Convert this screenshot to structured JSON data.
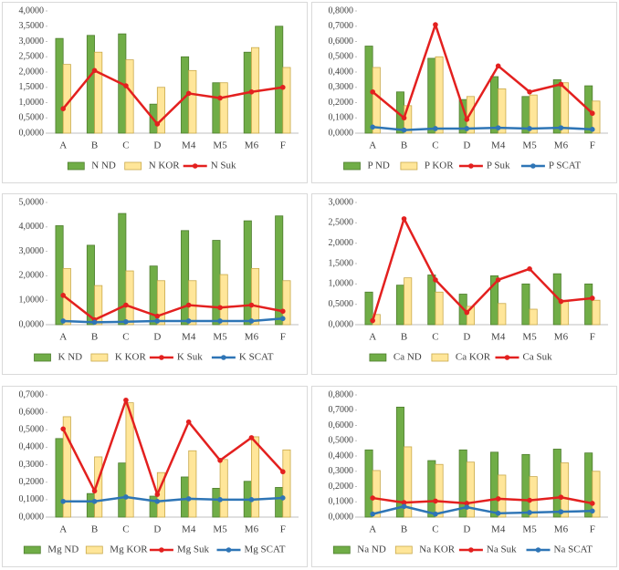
{
  "chart_data": [
    {
      "type": "bar_line",
      "categories": [
        "A",
        "B",
        "C",
        "D",
        "M4",
        "M5",
        "M6",
        "F"
      ],
      "ylim": [
        0,
        4
      ],
      "yticks": [
        {
          "value": 0,
          "label": "0,0000"
        },
        {
          "value": 0.5,
          "label": "0,5000"
        },
        {
          "value": 1,
          "label": "1,0000"
        },
        {
          "value": 1.5,
          "label": "1,5000"
        },
        {
          "value": 2,
          "label": "2,0000"
        },
        {
          "value": 2.5,
          "label": "2,5000"
        },
        {
          "value": 3,
          "label": "3,0000"
        },
        {
          "value": 3.5,
          "label": "3,5000"
        },
        {
          "value": 4,
          "label": "4,0000"
        }
      ],
      "series": [
        {
          "name": "N ND",
          "mark": "bar",
          "color": "#70ad47",
          "values": [
            3.1,
            3.2,
            3.25,
            0.95,
            2.5,
            1.65,
            2.65,
            3.5
          ]
        },
        {
          "name": "N KOR",
          "mark": "bar",
          "color": "#ffe699",
          "values": [
            2.25,
            2.65,
            2.4,
            1.5,
            2.05,
            1.65,
            2.8,
            2.15
          ]
        },
        {
          "name": "N Suk",
          "mark": "line",
          "color": "#e3201f",
          "values": [
            0.8,
            2.05,
            1.55,
            0.3,
            1.3,
            1.15,
            1.35,
            1.5
          ]
        }
      ]
    },
    {
      "type": "bar_line",
      "categories": [
        "A",
        "B",
        "C",
        "D",
        "M4",
        "M5",
        "M6",
        "F"
      ],
      "ylim": [
        0,
        0.8
      ],
      "yticks": [
        {
          "value": 0,
          "label": "0,0000"
        },
        {
          "value": 0.1,
          "label": "0,1000"
        },
        {
          "value": 0.2,
          "label": "0,2000"
        },
        {
          "value": 0.3,
          "label": "0,3000"
        },
        {
          "value": 0.4,
          "label": "0,4000"
        },
        {
          "value": 0.5,
          "label": "0,5000"
        },
        {
          "value": 0.6,
          "label": "0,6000"
        },
        {
          "value": 0.7,
          "label": "0,7000"
        },
        {
          "value": 0.8,
          "label": "0,8000"
        }
      ],
      "series": [
        {
          "name": "P ND",
          "mark": "bar",
          "color": "#70ad47",
          "values": [
            0.57,
            0.27,
            0.49,
            0.22,
            0.37,
            0.24,
            0.35,
            0.31
          ]
        },
        {
          "name": "P KOR",
          "mark": "bar",
          "color": "#ffe699",
          "values": [
            0.43,
            0.18,
            0.5,
            0.24,
            0.29,
            0.25,
            0.33,
            0.21
          ]
        },
        {
          "name": "P Suk",
          "mark": "line",
          "color": "#e3201f",
          "values": [
            0.27,
            0.1,
            0.71,
            0.09,
            0.44,
            0.27,
            0.32,
            0.13
          ]
        },
        {
          "name": "P SCAT",
          "mark": "line",
          "color": "#2e75b6",
          "values": [
            0.04,
            0.02,
            0.03,
            0.03,
            0.035,
            0.03,
            0.035,
            0.025
          ]
        }
      ]
    },
    {
      "type": "bar_line",
      "categories": [
        "A",
        "B",
        "C",
        "D",
        "M4",
        "M5",
        "M6",
        "F"
      ],
      "ylim": [
        0,
        5
      ],
      "yticks": [
        {
          "value": 0,
          "label": "0,0000"
        },
        {
          "value": 1,
          "label": "1,0000"
        },
        {
          "value": 2,
          "label": "2,0000"
        },
        {
          "value": 3,
          "label": "3,0000"
        },
        {
          "value": 4,
          "label": "4,0000"
        },
        {
          "value": 5,
          "label": "5,0000"
        }
      ],
      "series": [
        {
          "name": "K ND",
          "mark": "bar",
          "color": "#70ad47",
          "values": [
            4.05,
            3.25,
            4.55,
            2.4,
            3.85,
            3.45,
            4.25,
            4.45
          ]
        },
        {
          "name": "K KOR",
          "mark": "bar",
          "color": "#ffe699",
          "values": [
            2.3,
            1.6,
            2.2,
            1.8,
            1.8,
            2.05,
            2.3,
            1.8
          ]
        },
        {
          "name": "K Suk",
          "mark": "line",
          "color": "#e3201f",
          "values": [
            1.2,
            0.2,
            0.8,
            0.35,
            0.8,
            0.7,
            0.8,
            0.55
          ]
        },
        {
          "name": "K SCAT",
          "mark": "line",
          "color": "#2e75b6",
          "values": [
            0.15,
            0.1,
            0.12,
            0.15,
            0.15,
            0.15,
            0.15,
            0.25
          ]
        }
      ]
    },
    {
      "type": "bar_line",
      "categories": [
        "A",
        "B",
        "C",
        "D",
        "M4",
        "M5",
        "M6",
        "F"
      ],
      "ylim": [
        0,
        3
      ],
      "yticks": [
        {
          "value": 0,
          "label": "0,0000"
        },
        {
          "value": 0.5,
          "label": "0,5000"
        },
        {
          "value": 1,
          "label": "1,0000"
        },
        {
          "value": 1.5,
          "label": "1,5000"
        },
        {
          "value": 2,
          "label": "2,0000"
        },
        {
          "value": 2.5,
          "label": "2,5000"
        },
        {
          "value": 3,
          "label": "3,0000"
        }
      ],
      "series": [
        {
          "name": "Ca ND",
          "mark": "bar",
          "color": "#70ad47",
          "values": [
            0.8,
            0.97,
            1.22,
            0.75,
            1.2,
            1.0,
            1.25,
            1.0
          ]
        },
        {
          "name": "Ca KOR",
          "mark": "bar",
          "color": "#ffe699",
          "values": [
            0.25,
            1.15,
            0.8,
            0.45,
            0.52,
            0.38,
            0.6,
            0.6
          ]
        },
        {
          "name": "Ca Suk",
          "mark": "line",
          "color": "#e3201f",
          "values": [
            0.1,
            2.6,
            1.1,
            0.3,
            1.1,
            1.37,
            0.57,
            0.65
          ]
        }
      ]
    },
    {
      "type": "bar_line",
      "categories": [
        "A",
        "B",
        "C",
        "D",
        "M4",
        "M5",
        "M6",
        "F"
      ],
      "ylim": [
        0,
        0.7
      ],
      "yticks": [
        {
          "value": 0,
          "label": "0,0000"
        },
        {
          "value": 0.1,
          "label": "0,1000"
        },
        {
          "value": 0.2,
          "label": "0,2000"
        },
        {
          "value": 0.3,
          "label": "0,3000"
        },
        {
          "value": 0.4,
          "label": "0,4000"
        },
        {
          "value": 0.5,
          "label": "0,5000"
        },
        {
          "value": 0.6,
          "label": "0,6000"
        },
        {
          "value": 0.7,
          "label": "0,7000"
        }
      ],
      "series": [
        {
          "name": "Mg ND",
          "mark": "bar",
          "color": "#70ad47",
          "values": [
            0.45,
            0.135,
            0.31,
            0.12,
            0.23,
            0.165,
            0.205,
            0.17
          ]
        },
        {
          "name": "Mg KOR",
          "mark": "bar",
          "color": "#ffe699",
          "values": [
            0.575,
            0.345,
            0.655,
            0.255,
            0.38,
            0.33,
            0.46,
            0.385
          ]
        },
        {
          "name": "Mg Suk",
          "mark": "line",
          "color": "#e3201f",
          "values": [
            0.505,
            0.15,
            0.67,
            0.13,
            0.545,
            0.325,
            0.455,
            0.26
          ]
        },
        {
          "name": "Mg SCAT",
          "mark": "line",
          "color": "#2e75b6",
          "values": [
            0.09,
            0.09,
            0.115,
            0.09,
            0.105,
            0.1,
            0.1,
            0.11
          ]
        }
      ]
    },
    {
      "type": "bar_line",
      "categories": [
        "A",
        "B",
        "C",
        "D",
        "M4",
        "M5",
        "M6",
        "F"
      ],
      "ylim": [
        0,
        0.8
      ],
      "yticks": [
        {
          "value": 0,
          "label": "0,0000"
        },
        {
          "value": 0.1,
          "label": "0,1000"
        },
        {
          "value": 0.2,
          "label": "0,2000"
        },
        {
          "value": 0.3,
          "label": "0,3000"
        },
        {
          "value": 0.4,
          "label": "0,4000"
        },
        {
          "value": 0.5,
          "label": "0,5000"
        },
        {
          "value": 0.6,
          "label": "0,6000"
        },
        {
          "value": 0.7,
          "label": "0,7000"
        },
        {
          "value": 0.8,
          "label": "0,8000"
        }
      ],
      "series": [
        {
          "name": "Na ND",
          "mark": "bar",
          "color": "#70ad47",
          "values": [
            0.44,
            0.72,
            0.37,
            0.44,
            0.425,
            0.41,
            0.445,
            0.42
          ]
        },
        {
          "name": "Na KOR",
          "mark": "bar",
          "color": "#ffe699",
          "values": [
            0.305,
            0.46,
            0.345,
            0.36,
            0.275,
            0.265,
            0.355,
            0.3
          ]
        },
        {
          "name": "Na Suk",
          "mark": "line",
          "color": "#e3201f",
          "values": [
            0.125,
            0.095,
            0.105,
            0.09,
            0.12,
            0.11,
            0.13,
            0.09
          ]
        },
        {
          "name": "Na SCAT",
          "mark": "line",
          "color": "#2e75b6",
          "values": [
            0.02,
            0.07,
            0.02,
            0.065,
            0.025,
            0.03,
            0.035,
            0.04
          ]
        }
      ]
    }
  ]
}
